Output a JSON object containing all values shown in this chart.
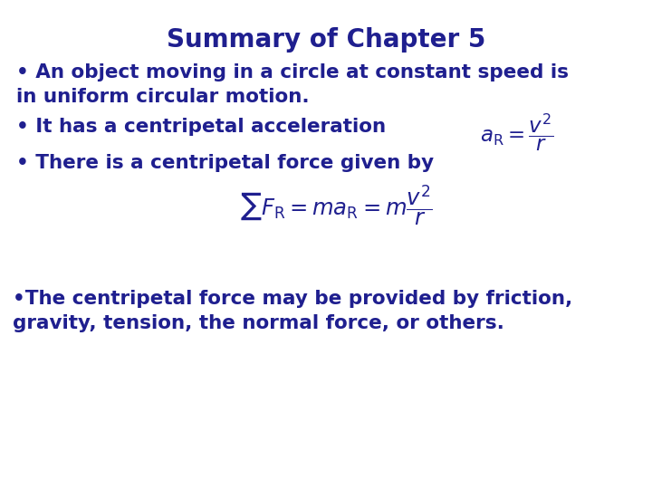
{
  "title": "Summary of Chapter 5",
  "title_color": "#1f1f8f",
  "title_fontsize": 20,
  "background_color": "#ffffff",
  "text_color": "#1f1f8f",
  "body_fontsize": 15.5,
  "bullet1_line1": "• An object moving in a circle at constant speed is",
  "bullet1_line2": "in uniform circular motion.",
  "bullet2": "• It has a centripetal acceleration",
  "bullet3": "• There is a centripetal force given by",
  "bullet4_line1": "•The centripetal force may be provided by friction,",
  "bullet4_line2": "gravity, tension, the normal force, or others."
}
